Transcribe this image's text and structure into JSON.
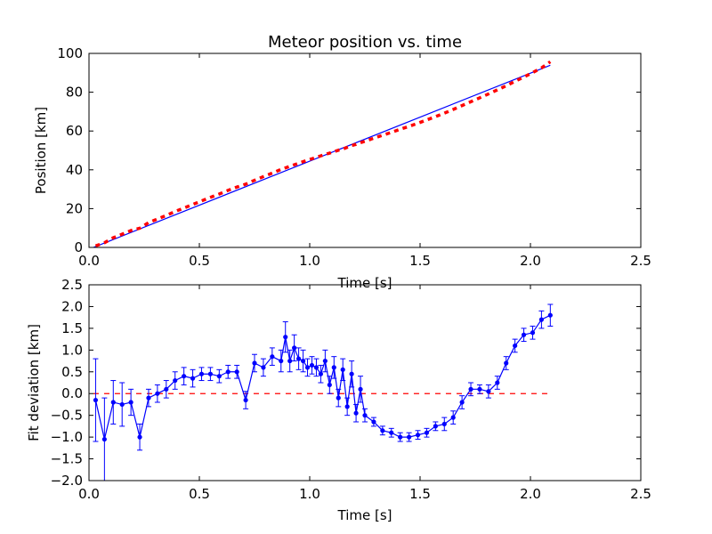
{
  "chart_data": [
    {
      "type": "line",
      "title": "Meteor position vs. time",
      "xlabel": "Time [s]",
      "ylabel": "Position [km]",
      "xlim": [
        0,
        2.5
      ],
      "ylim": [
        0,
        100
      ],
      "xticks": [
        "0.0",
        "0.5",
        "1.0",
        "1.5",
        "2.0",
        "2.5"
      ],
      "yticks": [
        "0",
        "20",
        "40",
        "60",
        "80",
        "100"
      ],
      "grid": false,
      "colors": {
        "observed": "#ff0000",
        "fit": "#0000ff"
      },
      "series": [
        {
          "style": "dashed",
          "color": "#ff0000",
          "x": [
            0.03,
            0.07,
            0.11,
            0.15,
            0.19,
            0.23,
            0.27,
            0.31,
            0.35,
            0.39,
            0.43,
            0.47,
            0.51,
            0.55,
            0.59,
            0.63,
            0.67,
            0.71,
            0.75,
            0.79,
            0.83,
            0.87,
            0.89,
            0.91,
            0.93,
            0.95,
            0.97,
            0.99,
            1.01,
            1.03,
            1.05,
            1.07,
            1.09,
            1.11,
            1.13,
            1.15,
            1.17,
            1.19,
            1.21,
            1.23,
            1.25,
            1.29,
            1.33,
            1.37,
            1.41,
            1.45,
            1.49,
            1.53,
            1.57,
            1.61,
            1.65,
            1.69,
            1.73,
            1.77,
            1.81,
            1.85,
            1.89,
            1.93,
            1.97,
            2.01,
            2.05,
            2.09
          ],
          "y": [
            0.8,
            2.4,
            5.0,
            6.8,
            8.7,
            9.9,
            12.8,
            14.6,
            16.5,
            18.5,
            20.3,
            22.1,
            24.0,
            25.8,
            27.5,
            29.4,
            31.1,
            32.6,
            34.6,
            36.5,
            38.3,
            40.2,
            41.0,
            41.8,
            42.6,
            43.4,
            44.2,
            45.0,
            45.7,
            46.4,
            47.2,
            48.0,
            48.6,
            49.4,
            50.1,
            50.7,
            51.6,
            52.5,
            53.1,
            54.0,
            54.7,
            56.3,
            57.8,
            59.3,
            60.9,
            62.4,
            64.0,
            65.7,
            67.4,
            69.2,
            71.1,
            73.1,
            75.1,
            77.1,
            79.1,
            81.2,
            83.3,
            85.6,
            87.8,
            90.1,
            92.5,
            95.7
          ]
        },
        {
          "style": "solid",
          "color": "#0000ff",
          "x": [
            0.02,
            2.09
          ],
          "y": [
            0.0,
            93.9
          ]
        }
      ]
    },
    {
      "type": "scatter",
      "xlabel": "Time [s]",
      "ylabel": "Fit deviation [km]",
      "xlim": [
        0,
        2.5
      ],
      "ylim": [
        -2.0,
        2.5
      ],
      "xticks": [
        "0.0",
        "0.5",
        "1.0",
        "1.5",
        "2.0",
        "2.5"
      ],
      "yticks": [
        "2.5",
        "2.0",
        "1.5",
        "1.0",
        "0.5",
        "0.0",
        "−0.5",
        "−1.0",
        "−1.5",
        "−2.0"
      ],
      "grid": false,
      "colors": {
        "points": "#0000ff",
        "zero_line": "#ff0000"
      },
      "series": [
        {
          "style": "line-points-errorbars",
          "color": "#0000ff",
          "x": [
            0.03,
            0.07,
            0.11,
            0.15,
            0.19,
            0.23,
            0.27,
            0.31,
            0.35,
            0.39,
            0.43,
            0.47,
            0.51,
            0.55,
            0.59,
            0.63,
            0.67,
            0.71,
            0.75,
            0.79,
            0.83,
            0.87,
            0.89,
            0.91,
            0.93,
            0.95,
            0.97,
            0.99,
            1.01,
            1.03,
            1.05,
            1.07,
            1.09,
            1.11,
            1.13,
            1.15,
            1.17,
            1.19,
            1.21,
            1.23,
            1.25,
            1.29,
            1.33,
            1.37,
            1.41,
            1.45,
            1.49,
            1.53,
            1.57,
            1.61,
            1.65,
            1.69,
            1.73,
            1.77,
            1.81,
            1.85,
            1.89,
            1.93,
            1.97,
            2.01,
            2.05,
            2.09
          ],
          "y": [
            -0.15,
            -1.05,
            -0.2,
            -0.25,
            -0.2,
            -1.0,
            -0.1,
            0.0,
            0.1,
            0.3,
            0.4,
            0.35,
            0.45,
            0.45,
            0.4,
            0.5,
            0.5,
            -0.15,
            0.7,
            0.6,
            0.85,
            0.75,
            1.3,
            0.75,
            1.05,
            0.8,
            0.75,
            0.6,
            0.65,
            0.6,
            0.45,
            0.75,
            0.2,
            0.6,
            -0.1,
            0.55,
            -0.3,
            0.45,
            -0.45,
            0.1,
            -0.5,
            -0.65,
            -0.85,
            -0.9,
            -1.0,
            -1.0,
            -0.95,
            -0.9,
            -0.75,
            -0.7,
            -0.55,
            -0.2,
            0.1,
            0.1,
            0.05,
            0.25,
            0.7,
            1.1,
            1.35,
            1.4,
            1.7,
            1.8
          ],
          "err": [
            0.95,
            0.95,
            0.5,
            0.5,
            0.3,
            0.3,
            0.2,
            0.2,
            0.2,
            0.2,
            0.2,
            0.2,
            0.15,
            0.15,
            0.15,
            0.15,
            0.15,
            0.2,
            0.2,
            0.2,
            0.2,
            0.25,
            0.35,
            0.25,
            0.3,
            0.25,
            0.25,
            0.2,
            0.2,
            0.2,
            0.2,
            0.25,
            0.2,
            0.25,
            0.2,
            0.25,
            0.2,
            0.3,
            0.2,
            0.3,
            0.15,
            0.1,
            0.1,
            0.1,
            0.1,
            0.1,
            0.1,
            0.1,
            0.1,
            0.15,
            0.15,
            0.15,
            0.15,
            0.1,
            0.15,
            0.15,
            0.15,
            0.15,
            0.15,
            0.15,
            0.2,
            0.25
          ]
        },
        {
          "style": "dashed",
          "color": "#ff0000",
          "x": [
            0.02,
            2.09
          ],
          "y": [
            0.0,
            0.0
          ]
        }
      ]
    }
  ]
}
